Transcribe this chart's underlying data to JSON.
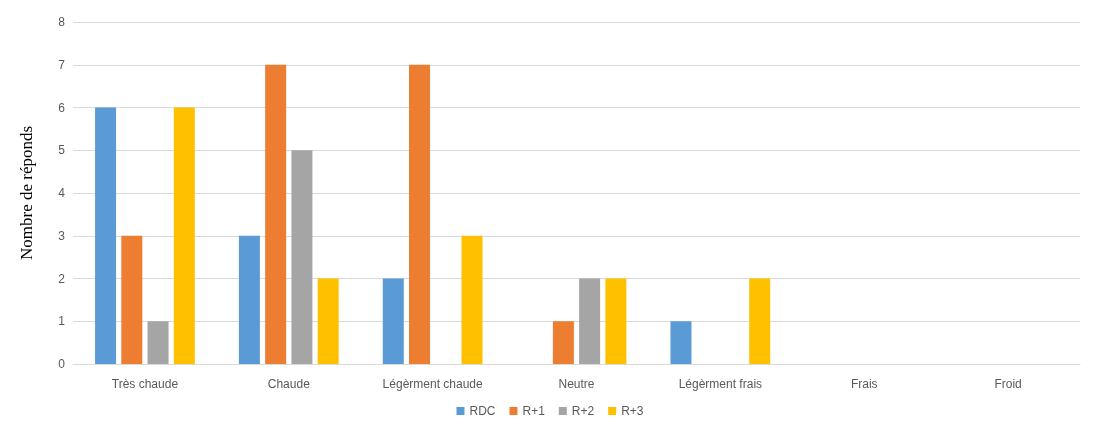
{
  "chart_data": {
    "type": "bar",
    "ylabel": "Nombre de réponds",
    "categories": [
      "Très chaude",
      "Chaude",
      "Légèrment chaude",
      "Neutre",
      "Légèrment frais",
      "Frais",
      "Froid"
    ],
    "series": [
      {
        "name": "RDC",
        "color": "#5b9bd5",
        "values": [
          6,
          3,
          2,
          0,
          1,
          0,
          0
        ]
      },
      {
        "name": "R+1",
        "color": "#ed7d31",
        "values": [
          3,
          7,
          7,
          1,
          0,
          0,
          0
        ]
      },
      {
        "name": "R+2",
        "color": "#a5a5a5",
        "values": [
          1,
          5,
          0,
          2,
          0,
          0,
          0
        ]
      },
      {
        "name": "R+3",
        "color": "#ffc000",
        "values": [
          6,
          2,
          3,
          2,
          2,
          0,
          0
        ]
      }
    ],
    "ylim": [
      0,
      8
    ],
    "yticks": [
      0,
      1,
      2,
      3,
      4,
      5,
      6,
      7,
      8
    ],
    "grid": "y",
    "legend": "bottom"
  }
}
